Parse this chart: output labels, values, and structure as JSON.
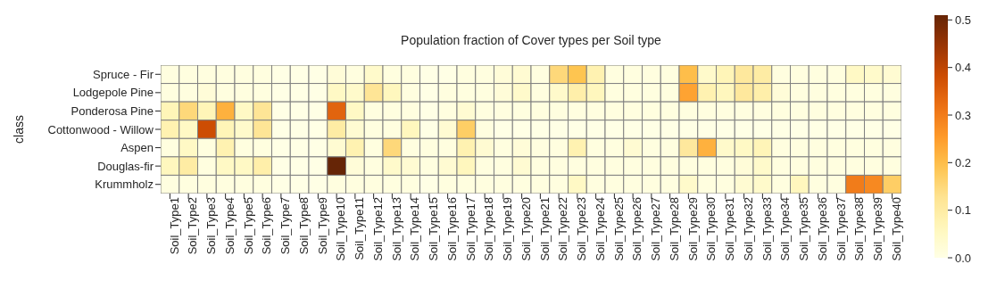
{
  "chart_data": {
    "type": "heatmap",
    "title": "Population fraction of Cover types per Soil type",
    "ylabel": "class",
    "categories": [
      "Soil_Type1",
      "Soil_Type2",
      "Soil_Type3",
      "Soil_Type4",
      "Soil_Type5",
      "Soil_Type6",
      "Soil_Type7",
      "Soil_Type8",
      "Soil_Type9",
      "Soil_Type10",
      "Soil_Type11",
      "Soil_Type12",
      "Soil_Type13",
      "Soil_Type14",
      "Soil_Type15",
      "Soil_Type16",
      "Soil_Type17",
      "Soil_Type18",
      "Soil_Type19",
      "Soil_Type20",
      "Soil_Type21",
      "Soil_Type22",
      "Soil_Type23",
      "Soil_Type24",
      "Soil_Type25",
      "Soil_Type26",
      "Soil_Type27",
      "Soil_Type28",
      "Soil_Type29",
      "Soil_Type30",
      "Soil_Type31",
      "Soil_Type32",
      "Soil_Type33",
      "Soil_Type34",
      "Soil_Type35",
      "Soil_Type36",
      "Soil_Type37",
      "Soil_Type38",
      "Soil_Type39",
      "Soil_Type40"
    ],
    "y_categories": [
      "Spruce - Fir",
      "Lodgepole Pine",
      "Ponderosa Pine",
      "Cottonwood - Willow",
      "Aspen",
      "Douglas-fir",
      "Krummholz"
    ],
    "cells": [
      [
        0.01,
        0.01,
        0.01,
        0.01,
        0.01,
        0.01,
        0,
        0,
        0,
        0.02,
        0.01,
        0.04,
        0.01,
        0.01,
        0,
        0,
        0.01,
        0.01,
        0.02,
        0.03,
        0.01,
        0.15,
        0.19,
        0.08,
        0.01,
        0.01,
        0.01,
        0.01,
        0.2,
        0.04,
        0.07,
        0.11,
        0.1,
        0.01,
        0.01,
        0.01,
        0.01,
        0.05,
        0.04,
        0.03
      ],
      [
        0.01,
        0.01,
        0.02,
        0.01,
        0.01,
        0.01,
        0,
        0,
        0,
        0.05,
        0.04,
        0.12,
        0.06,
        0.01,
        0,
        0.01,
        0.01,
        0.01,
        0.02,
        0.04,
        0.01,
        0.04,
        0.09,
        0.06,
        0.01,
        0.01,
        0.01,
        0.01,
        0.24,
        0.08,
        0.06,
        0.11,
        0.09,
        0.02,
        0.01,
        0.01,
        0.01,
        0.01,
        0.01,
        0.01
      ],
      [
        0.07,
        0.15,
        0.07,
        0.22,
        0.05,
        0.12,
        0,
        0,
        0,
        0.34,
        0.05,
        0.01,
        0.01,
        0.01,
        0,
        0.01,
        0.03,
        0.01,
        0.01,
        0.01,
        0.01,
        0.01,
        0.01,
        0.01,
        0.01,
        0.01,
        0.01,
        0.01,
        0.01,
        0.01,
        0.01,
        0.01,
        0.01,
        0.01,
        0.01,
        0.01,
        0.01,
        0.01,
        0.01,
        0.01
      ],
      [
        0.08,
        0.05,
        0.38,
        0.07,
        0.04,
        0.12,
        0,
        0,
        0,
        0.1,
        0.03,
        0.01,
        0.01,
        0.06,
        0,
        0.03,
        0.17,
        0.01,
        0,
        0,
        0,
        0,
        0,
        0,
        0,
        0,
        0,
        0,
        0,
        0,
        0,
        0,
        0,
        0,
        0,
        0,
        0,
        0,
        0,
        0
      ],
      [
        0.01,
        0.05,
        0.01,
        0.08,
        0.01,
        0.01,
        0,
        0,
        0,
        0.03,
        0.08,
        0.01,
        0.15,
        0.01,
        0.01,
        0.01,
        0.08,
        0.03,
        0.01,
        0.02,
        0.01,
        0.01,
        0.08,
        0.01,
        0.01,
        0.03,
        0.01,
        0.01,
        0.11,
        0.22,
        0.04,
        0.05,
        0.07,
        0.01,
        0.01,
        0.01,
        0.01,
        0.01,
        0.01,
        0.01
      ],
      [
        0.06,
        0.1,
        0.01,
        0.05,
        0.05,
        0.09,
        0,
        0,
        0,
        0.51,
        0.02,
        0.01,
        0.04,
        0.03,
        0.01,
        0.03,
        0.06,
        0.01,
        0.01,
        0.03,
        0.01,
        0.01,
        0.01,
        0.01,
        0.01,
        0.01,
        0.01,
        0.01,
        0.01,
        0.01,
        0.01,
        0.02,
        0.04,
        0.01,
        0.01,
        0.01,
        0.01,
        0.01,
        0.01,
        0.01
      ],
      [
        0.01,
        0.01,
        0.01,
        0.01,
        0.01,
        0.01,
        0,
        0,
        0,
        0.01,
        0.01,
        0.01,
        0.01,
        0.01,
        0,
        0.01,
        0.01,
        0.01,
        0.01,
        0.01,
        0.01,
        0.01,
        0.05,
        0.01,
        0.01,
        0.01,
        0.01,
        0.01,
        0.04,
        0.01,
        0.01,
        0.03,
        0.04,
        0.01,
        0.06,
        0.01,
        0.01,
        0.3,
        0.28,
        0.17
      ]
    ],
    "clim": [
      0,
      0.51
    ],
    "cticks": [
      {
        "value": 0,
        "label": "0.0"
      },
      {
        "value": 0.1,
        "label": "0.1"
      },
      {
        "value": 0.2,
        "label": "0.2"
      },
      {
        "value": 0.3,
        "label": "0.3"
      },
      {
        "value": 0.4,
        "label": "0.4"
      },
      {
        "value": 0.5,
        "label": "0.5"
      }
    ]
  }
}
